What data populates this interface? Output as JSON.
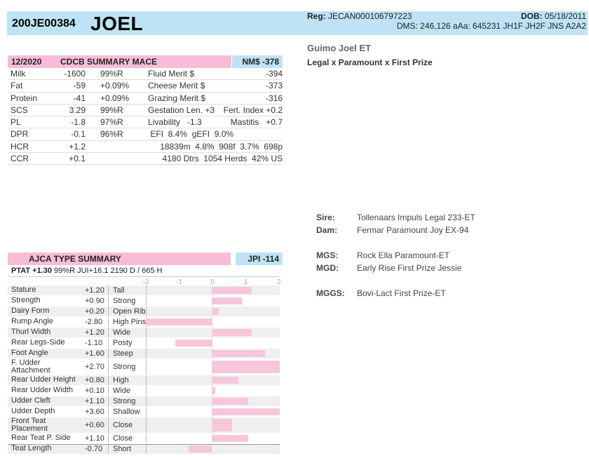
{
  "header": {
    "reg_id": "200JE00384",
    "name": "JOEL",
    "reg_label": "Reg:",
    "reg_value": "JECAN000106797223",
    "dob_label": "DOB:",
    "dob_value": "05/18/2011",
    "dms_line": "DMS: 246,126  aAa: 645231  JH1F JH2F JNS  A2A2"
  },
  "animal": {
    "full_name": "Guimo Joel ET",
    "pedigree": "Legal x Paramount x First Prize"
  },
  "ancestry": [
    {
      "label": "Sire:",
      "value": "Tollenaars Impuls Legal 233-ET"
    },
    {
      "label": "Dam:",
      "value": "Fermar Paramount Joy EX-94"
    },
    {
      "label": "MGS:",
      "value": "Rock Ella Paramount-ET"
    },
    {
      "label": "MGD:",
      "value": "Early Rise First Prize Jessie"
    },
    {
      "label": "MGGS:",
      "value": "Bovi-Lact First Prize-ET"
    }
  ],
  "cdcb": {
    "date": "12/2020",
    "title": "CDCB SUMMARY MACE",
    "nm": "NM$ -378",
    "rows": [
      {
        "a": "Milk",
        "b": "-1600",
        "c": "99%R",
        "d": "Fluid Merit $",
        "e": "-394"
      },
      {
        "a": "Fat",
        "b": "-59",
        "c": "+0.09%",
        "d": "Cheese Merit $",
        "e": "-373"
      },
      {
        "a": "Protein",
        "b": "-41",
        "c": "+0.09%",
        "d": "Grazing Merit $",
        "e": "-316"
      },
      {
        "a": "SCS",
        "b": "3.29",
        "c": "99%R",
        "d": "Gestation Len. +3",
        "e": "Fert. Index +0.2"
      },
      {
        "a": "PL",
        "b": "-1.8",
        "c": "97%R",
        "d": "Livability   -1.3",
        "e": "Mastitis   +0.7"
      },
      {
        "a": "DPR",
        "b": "-0.1",
        "c": "96%R",
        "d": " EFI  8.4%  gEFI  9.0%",
        "e": ""
      },
      {
        "a": "HCR",
        "b": "+1.2",
        "c": "",
        "d": "",
        "e": "18839m  4.8%  908f  3.7%  698p"
      },
      {
        "a": "CCR",
        "b": "+0.1",
        "c": "",
        "d": "",
        "e": "4180 Dtrs  1054 Herds  42% US"
      }
    ]
  },
  "ajca": {
    "title": "AJCA TYPE SUMMARY",
    "jpi": "JPI -114",
    "ptat_label": "PTAT +1.30",
    "ptat_rest": "99%R  JUI+16.1       2190 D /  665 H",
    "scale": [
      "-2",
      "-1",
      "0",
      "1",
      "2"
    ],
    "traits": [
      {
        "name": "Stature",
        "value": 1.2,
        "label": "+1.20",
        "desc": "Tall"
      },
      {
        "name": "Strength",
        "value": 0.9,
        "label": "+0.90",
        "desc": "Strong"
      },
      {
        "name": "Dairy Form",
        "value": 0.2,
        "label": "+0.20",
        "desc": "Open Rib"
      },
      {
        "name": "Rump Angle",
        "value": -2.8,
        "label": "-2.80",
        "desc": "High Pins"
      },
      {
        "name": "Thurl Width",
        "value": 1.2,
        "label": "+1.20",
        "desc": "Wide"
      },
      {
        "name": "Rear Legs-Side",
        "value": -1.1,
        "label": "-1.10",
        "desc": "Posty"
      },
      {
        "name": "Foot Angle",
        "value": 1.6,
        "label": "+1.60",
        "desc": "Steep"
      },
      {
        "name": "F. Udder Attachment",
        "value": 2.7,
        "label": "+2.70",
        "desc": "Strong"
      },
      {
        "name": "Rear Udder Height",
        "value": 0.8,
        "label": "+0.80",
        "desc": "High"
      },
      {
        "name": "Rear Udder Width",
        "value": 0.1,
        "label": "+0.10",
        "desc": "Wide"
      },
      {
        "name": "Udder Cleft",
        "value": 1.1,
        "label": "+1.10",
        "desc": "Strong"
      },
      {
        "name": "Udder Depth",
        "value": 3.6,
        "label": "+3.60",
        "desc": "Shallow"
      },
      {
        "name": "Front Teat Placement",
        "value": 0.6,
        "label": "+0.60",
        "desc": "Close"
      },
      {
        "name": "Rear Teat P. Side",
        "value": 1.1,
        "label": "+1.10",
        "desc": "Close"
      },
      {
        "name": "Teat Length",
        "value": -0.7,
        "label": "-0.70",
        "desc": "Short"
      }
    ]
  }
}
